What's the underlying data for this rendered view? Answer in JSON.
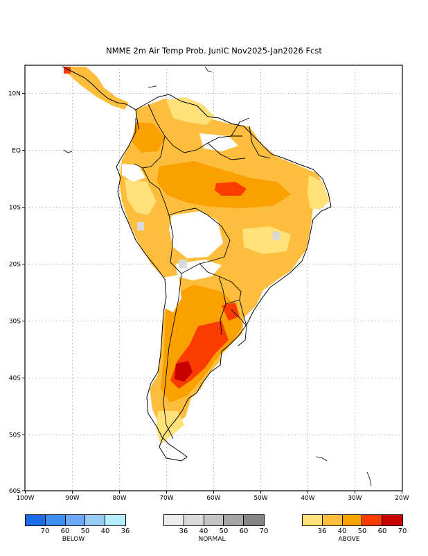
{
  "title": "NMME 2m Air Temp Prob. JunIC  Nov2025-Jan2026 Fcst",
  "map": {
    "lon_range": [
      -100,
      -20
    ],
    "lat_range": [
      -60,
      15
    ],
    "lon_ticks": [
      "100W",
      "90W",
      "80W",
      "70W",
      "60W",
      "50W",
      "40W",
      "30W",
      "20W"
    ],
    "lat_ticks": [
      "10N",
      "EQ",
      "10S",
      "20S",
      "30S",
      "40S",
      "50S",
      "60S"
    ]
  },
  "legends": [
    {
      "name": "BELOW",
      "colors": [
        "#1e6de8",
        "#3d8ef3",
        "#6ba8f5",
        "#97ccf5",
        "#b4eefa"
      ],
      "labels": [
        "70",
        "60",
        "50",
        "40",
        "36"
      ]
    },
    {
      "name": "NORMAL",
      "colors": [
        "#ececec",
        "#d9d9d9",
        "#c4c4c4",
        "#a5a5a5",
        "#858585"
      ],
      "labels": [
        "36",
        "40",
        "50",
        "60",
        "70"
      ]
    },
    {
      "name": "ABOVE",
      "colors": [
        "#ffe17a",
        "#fcbe3c",
        "#faa000",
        "#fa3c00",
        "#c80000"
      ],
      "labels": [
        "36",
        "40",
        "50",
        "60",
        "70"
      ]
    }
  ]
}
